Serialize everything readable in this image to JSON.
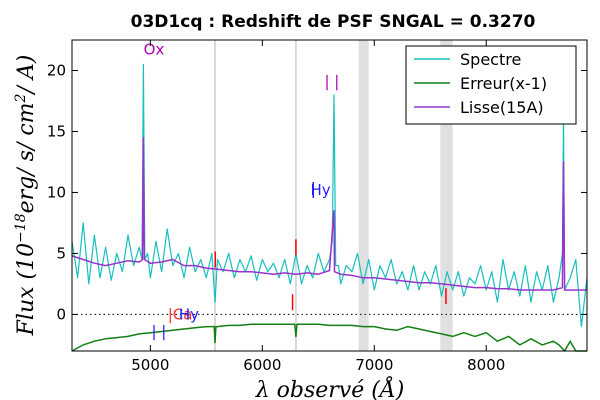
{
  "chart_data": {
    "type": "line",
    "title": "03D1cq : Redshift de PSF SNGAL = 0.3270",
    "xlabel": "λ observé (Å)",
    "ylabel": "Flux (10^-18 erg/ s/ cm^2/ A)",
    "ylabel_parts": {
      "pre": "Flux (10",
      "exp": "−18",
      "post": "erg/ s/ cm",
      "exp2": "2",
      "post2": "/ A)"
    },
    "xlim": [
      4300,
      8900
    ],
    "ylim": [
      -3,
      22.5
    ],
    "x_ticks": [
      {
        "value": 5000,
        "label": "5000"
      },
      {
        "value": 6000,
        "label": "6000"
      },
      {
        "value": 7000,
        "label": "7000"
      },
      {
        "value": 8000,
        "label": "8000"
      }
    ],
    "y_ticks": [
      {
        "value": 0,
        "label": "0"
      },
      {
        "value": 5,
        "label": "5"
      },
      {
        "value": 10,
        "label": "10"
      },
      {
        "value": 15,
        "label": "15"
      },
      {
        "value": 20,
        "label": "20"
      }
    ],
    "legend": {
      "position": "top-right",
      "entries": [
        {
          "name": "Spectre",
          "color": "#17bfbf"
        },
        {
          "name": "Erreur(x-1)",
          "color": "#128012"
        },
        {
          "name": "Lisse(15A)",
          "color": "#9933cc"
        }
      ]
    },
    "grey_bands": [
      [
        6860,
        6950
      ],
      [
        7590,
        7700
      ]
    ],
    "sky_lines": [
      5577,
      6300
    ],
    "zero_line": 0,
    "series": [
      {
        "name": "Spectre",
        "color": "#17bfbf",
        "x": [
          4300,
          4350,
          4400,
          4450,
          4500,
          4550,
          4600,
          4650,
          4700,
          4750,
          4800,
          4850,
          4900,
          4925,
          4938,
          4950,
          4975,
          5000,
          5050,
          5100,
          5150,
          5200,
          5250,
          5300,
          5350,
          5400,
          5450,
          5500,
          5550,
          5577,
          5600,
          5650,
          5700,
          5750,
          5800,
          5850,
          5900,
          5950,
          6000,
          6050,
          6100,
          6150,
          6200,
          6250,
          6300,
          6350,
          6400,
          6450,
          6500,
          6550,
          6600,
          6625,
          6640,
          6655,
          6680,
          6700,
          6750,
          6800,
          6850,
          6900,
          6950,
          7000,
          7050,
          7100,
          7150,
          7200,
          7250,
          7300,
          7350,
          7400,
          7450,
          7500,
          7550,
          7600,
          7650,
          7700,
          7750,
          7800,
          7850,
          7900,
          7950,
          8000,
          8050,
          8100,
          8150,
          8200,
          8250,
          8300,
          8350,
          8400,
          8450,
          8500,
          8550,
          8600,
          8650,
          8680,
          8690,
          8700,
          8750,
          8800,
          8850,
          8900
        ],
        "y": [
          6.0,
          3.0,
          7.5,
          2.5,
          6.5,
          3.0,
          5.5,
          2.8,
          5.0,
          3.5,
          6.5,
          4.0,
          5.5,
          4.5,
          20.5,
          4.5,
          5.0,
          3.0,
          6.0,
          3.5,
          7.0,
          4.0,
          5.0,
          3.0,
          5.5,
          3.5,
          4.5,
          3.0,
          5.0,
          1.0,
          4.5,
          3.5,
          5.0,
          3.0,
          4.5,
          3.5,
          4.8,
          2.8,
          4.5,
          3.5,
          4.2,
          3.0,
          4.5,
          2.5,
          5.0,
          2.5,
          4.0,
          3.0,
          5.0,
          3.5,
          4.5,
          6.0,
          18.0,
          4.0,
          4.0,
          2.5,
          4.0,
          3.5,
          5.0,
          2.5,
          4.5,
          2.0,
          4.0,
          3.0,
          4.5,
          2.5,
          3.5,
          2.0,
          4.0,
          2.0,
          3.5,
          2.5,
          4.0,
          1.5,
          3.5,
          2.0,
          3.5,
          1.5,
          3.0,
          2.5,
          4.0,
          2.0,
          3.5,
          1.0,
          4.5,
          2.0,
          3.5,
          1.5,
          4.0,
          1.0,
          3.5,
          2.0,
          4.0,
          1.0,
          3.0,
          5.0,
          16.5,
          2.0,
          3.0,
          4.5,
          -1.0,
          3.0
        ]
      },
      {
        "name": "Erreur(x-1)",
        "color": "#128012",
        "x": [
          4300,
          4400,
          4500,
          4600,
          4700,
          4800,
          4900,
          5000,
          5100,
          5200,
          5300,
          5400,
          5500,
          5570,
          5577,
          5585,
          5600,
          5700,
          5800,
          5900,
          6000,
          6100,
          6200,
          6290,
          6300,
          6310,
          6400,
          6500,
          6600,
          6700,
          6800,
          6900,
          7000,
          7100,
          7200,
          7300,
          7400,
          7500,
          7600,
          7700,
          7800,
          7900,
          8000,
          8100,
          8200,
          8300,
          8400,
          8500,
          8600,
          8650,
          8700,
          8750,
          8800,
          8900
        ],
        "y": [
          -3.0,
          -2.5,
          -2.2,
          -2.0,
          -1.9,
          -1.8,
          -1.6,
          -1.5,
          -1.4,
          -1.3,
          -1.2,
          -1.1,
          -1.0,
          -1.0,
          -2.3,
          -1.0,
          -1.0,
          -0.9,
          -0.9,
          -0.8,
          -0.8,
          -0.8,
          -0.8,
          -0.8,
          -1.8,
          -0.8,
          -0.8,
          -0.8,
          -0.9,
          -0.9,
          -0.9,
          -1.0,
          -1.0,
          -1.2,
          -1.3,
          -1.0,
          -1.2,
          -1.4,
          -1.6,
          -1.8,
          -1.5,
          -1.8,
          -1.5,
          -2.2,
          -1.8,
          -2.5,
          -2.0,
          -2.5,
          -2.2,
          -2.5,
          -3.0,
          -2.2,
          -3.0,
          -3.0
        ]
      },
      {
        "name": "Lisse(15A)",
        "color": "#9933cc",
        "x": [
          4300,
          4400,
          4500,
          4600,
          4700,
          4800,
          4900,
          4930,
          4938,
          4946,
          5000,
          5100,
          5200,
          5300,
          5400,
          5500,
          5600,
          5700,
          5800,
          5900,
          6000,
          6100,
          6200,
          6300,
          6400,
          6500,
          6600,
          6635,
          6640,
          6645,
          6700,
          6800,
          6900,
          7000,
          7100,
          7200,
          7300,
          7400,
          7500,
          7600,
          7700,
          7800,
          7900,
          8000,
          8100,
          8200,
          8300,
          8400,
          8500,
          8600,
          8680,
          8690,
          8700,
          8800,
          8900
        ],
        "y": [
          4.8,
          4.5,
          4.2,
          4.0,
          4.2,
          4.4,
          4.3,
          4.5,
          14.5,
          4.5,
          4.2,
          4.3,
          4.5,
          4.0,
          4.0,
          3.8,
          3.7,
          3.6,
          3.5,
          3.5,
          3.4,
          3.3,
          3.4,
          3.3,
          3.4,
          3.3,
          3.6,
          8.0,
          8.5,
          3.5,
          3.3,
          3.2,
          3.0,
          3.0,
          2.9,
          2.8,
          2.7,
          2.6,
          2.6,
          2.5,
          2.4,
          2.3,
          2.2,
          2.2,
          2.1,
          2.1,
          2.0,
          2.0,
          2.0,
          2.0,
          2.2,
          12.5,
          2.0,
          2.0,
          2.0
        ]
      }
    ],
    "annotations": [
      {
        "text": "Ox",
        "x": 4940,
        "y": 21.3,
        "color": "#b000b0"
      },
      {
        "text": "| |",
        "x": 6555,
        "y": 18.7,
        "color": "#b000b0"
      },
      {
        "text": "Hy",
        "x": 6430,
        "y": 9.8,
        "color": "#2020ff"
      },
      {
        "text": "| |",
        "x": 5010,
        "y": -1.8,
        "color": "#2020ff"
      },
      {
        "text": "|Ca",
        "x": 5155,
        "y": -0.4,
        "color": "#ff3030"
      },
      {
        "text": "Hy",
        "x": 5255,
        "y": -0.4,
        "color": "#2020ff"
      },
      {
        "text": "|",
        "x": 8665,
        "y": 17.3,
        "color": "#2020ff"
      }
    ],
    "markers": [
      {
        "x": 5580,
        "y": 4.5,
        "color": "#ff0000"
      },
      {
        "x": 6300,
        "y": 5.5,
        "color": "#ff0000"
      },
      {
        "x": 6270,
        "y": 1.0,
        "color": "#ff0000"
      },
      {
        "x": 7640,
        "y": 1.5,
        "color": "#ff0000"
      },
      {
        "x": 6455,
        "y": 10.2,
        "color": "#2020ff"
      }
    ]
  }
}
